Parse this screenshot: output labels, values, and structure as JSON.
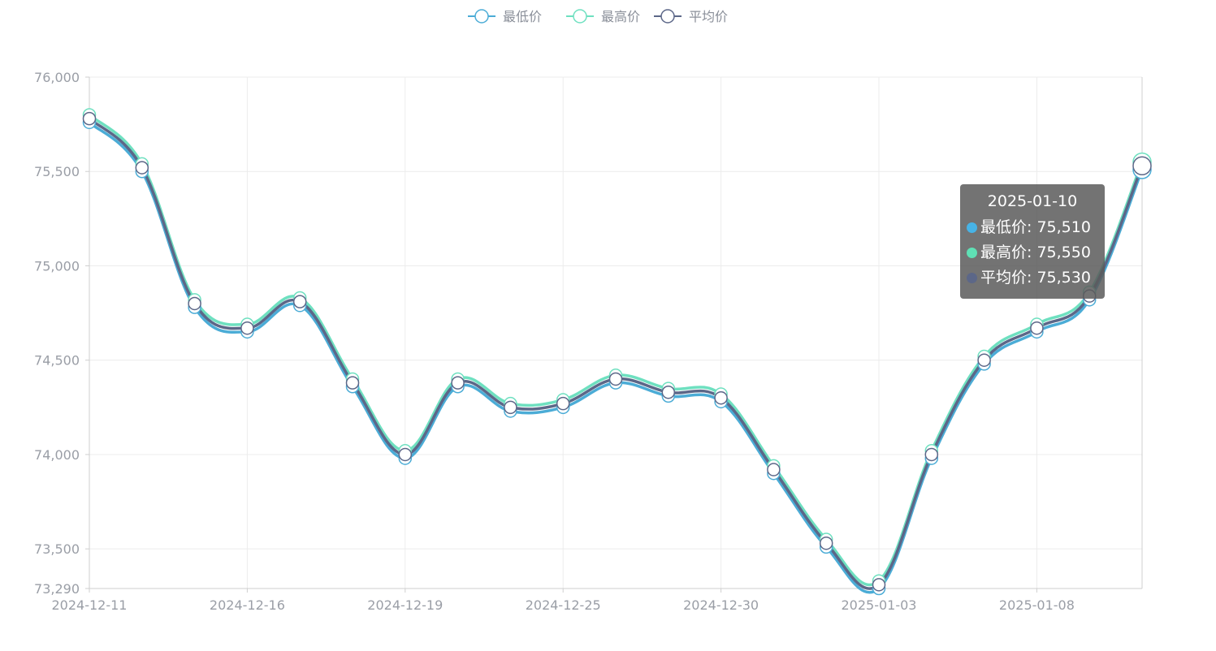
{
  "chart_data": {
    "type": "line",
    "title": "",
    "xlabel": "",
    "ylabel": "",
    "ylim": [
      73290,
      76000
    ],
    "y_ticks": [
      "76,000",
      "75,500",
      "75,000",
      "74,500",
      "74,000",
      "73,500",
      "73,290"
    ],
    "y_tick_values": [
      76000,
      75500,
      75000,
      74500,
      74000,
      73500,
      73290
    ],
    "x_tick_labels": [
      "2024-12-11",
      "2024-12-16",
      "2024-12-19",
      "2024-12-25",
      "2024-12-30",
      "2025-01-03",
      "2025-01-08"
    ],
    "x_tick_indices": [
      0,
      3,
      6,
      9,
      12,
      15,
      18
    ],
    "grid": true,
    "legend_position": "top-center",
    "series": [
      {
        "name": "最低价",
        "color": "#4bacd6",
        "values": [
          75760,
          75500,
          74780,
          74650,
          74790,
          74360,
          73980,
          74360,
          74230,
          74250,
          74380,
          74310,
          74280,
          73900,
          73510,
          73290,
          73980,
          74480,
          74650,
          74820,
          75510
        ]
      },
      {
        "name": "最高价",
        "color": "#6ee0c0",
        "values": [
          75800,
          75540,
          74820,
          74690,
          74830,
          74400,
          74020,
          74400,
          74270,
          74290,
          74420,
          74350,
          74320,
          73940,
          73550,
          73330,
          74020,
          74520,
          74690,
          74860,
          75550
        ]
      },
      {
        "name": "平均价",
        "color": "#5c6788",
        "values": [
          75780,
          75520,
          74800,
          74670,
          74810,
          74380,
          74000,
          74380,
          74250,
          74270,
          74400,
          74330,
          74300,
          73920,
          73530,
          73310,
          74000,
          74500,
          74670,
          74840,
          75530
        ]
      }
    ]
  },
  "tooltip": {
    "date": "2025-01-10",
    "rows": [
      {
        "text": "最低价: 75,510",
        "color": "#47b3e6"
      },
      {
        "text": "最高价: 75,550",
        "color": "#5fe0b5"
      },
      {
        "text": "平均价: 75,530",
        "color": "#5c6788"
      }
    ]
  }
}
